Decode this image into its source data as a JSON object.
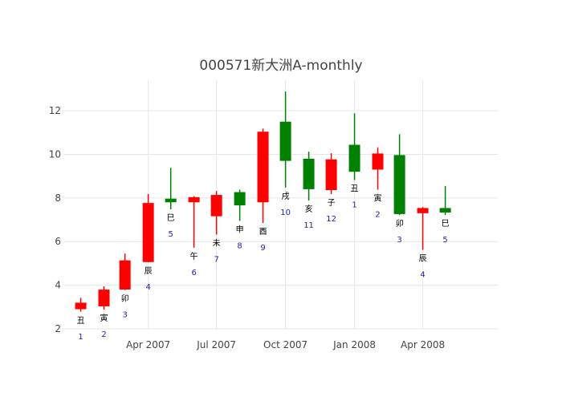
{
  "chart_data": {
    "type": "candlestick",
    "title": "000571新大洲A-monthly",
    "xlabel": "",
    "ylabel": "",
    "ylim": [
      2,
      13.4
    ],
    "yticks": [
      2,
      4,
      6,
      8,
      10,
      12
    ],
    "xlim": [
      "2006-12-10",
      "2008-07-10"
    ],
    "xticks": [
      {
        "date": "2007-04-01",
        "label": "Apr 2007"
      },
      {
        "date": "2007-07-01",
        "label": "Jul 2007"
      },
      {
        "date": "2007-10-01",
        "label": "Oct 2007"
      },
      {
        "date": "2008-01-01",
        "label": "Jan 2008"
      },
      {
        "date": "2008-04-01",
        "label": "Apr 2008"
      }
    ],
    "grid": true,
    "legend": "none",
    "colors": {
      "increasing": "#ff0000",
      "decreasing": "#008000"
    },
    "candles": [
      {
        "date": "2007-01-01",
        "open": 2.92,
        "high": 3.42,
        "low": 2.78,
        "close": 3.18,
        "zodiac": "丑",
        "month": "1"
      },
      {
        "date": "2007-02-01",
        "open": 3.05,
        "high": 3.95,
        "low": 2.88,
        "close": 3.78,
        "zodiac": "寅",
        "month": "2"
      },
      {
        "date": "2007-03-01",
        "open": 3.82,
        "high": 5.45,
        "low": 3.78,
        "close": 5.12,
        "zodiac": "卯",
        "month": "3"
      },
      {
        "date": "2007-04-01",
        "open": 5.08,
        "high": 8.18,
        "low": 5.05,
        "close": 7.75,
        "zodiac": "辰",
        "month": "4"
      },
      {
        "date": "2007-05-01",
        "open": 7.95,
        "high": 9.38,
        "low": 7.48,
        "close": 7.82,
        "zodiac": "巳",
        "month": "5"
      },
      {
        "date": "2007-06-01",
        "open": 7.82,
        "high": 8.08,
        "low": 5.72,
        "close": 8.02,
        "zodiac": "午",
        "month": "6"
      },
      {
        "date": "2007-07-01",
        "open": 7.18,
        "high": 8.32,
        "low": 6.32,
        "close": 8.12,
        "zodiac": "未",
        "month": "7"
      },
      {
        "date": "2007-08-01",
        "open": 8.25,
        "high": 8.38,
        "low": 6.95,
        "close": 7.68,
        "zodiac": "申",
        "month": "8"
      },
      {
        "date": "2007-09-01",
        "open": 7.82,
        "high": 11.18,
        "low": 6.85,
        "close": 11.02,
        "zodiac": "酉",
        "month": "9"
      },
      {
        "date": "2007-10-01",
        "open": 11.48,
        "high": 12.88,
        "low": 8.48,
        "close": 9.72,
        "zodiac": "戌",
        "month": "10"
      },
      {
        "date": "2007-11-01",
        "open": 9.78,
        "high": 10.12,
        "low": 7.88,
        "close": 8.42,
        "zodiac": "亥",
        "month": "11"
      },
      {
        "date": "2007-12-01",
        "open": 8.38,
        "high": 10.05,
        "low": 8.18,
        "close": 9.75,
        "zodiac": "子",
        "month": "12"
      },
      {
        "date": "2008-01-01",
        "open": 10.42,
        "high": 11.88,
        "low": 8.82,
        "close": 9.22,
        "zodiac": "丑",
        "month": "1"
      },
      {
        "date": "2008-02-01",
        "open": 9.32,
        "high": 10.32,
        "low": 8.38,
        "close": 10.02,
        "zodiac": "寅",
        "month": "2"
      },
      {
        "date": "2008-03-01",
        "open": 9.95,
        "high": 10.92,
        "low": 7.22,
        "close": 7.28,
        "zodiac": "卯",
        "month": "3"
      },
      {
        "date": "2008-04-01",
        "open": 7.32,
        "high": 7.58,
        "low": 5.62,
        "close": 7.52,
        "zodiac": "辰",
        "month": "4"
      },
      {
        "date": "2008-05-01",
        "open": 7.52,
        "high": 8.55,
        "low": 7.22,
        "close": 7.35,
        "zodiac": "巳",
        "month": "5"
      }
    ]
  }
}
